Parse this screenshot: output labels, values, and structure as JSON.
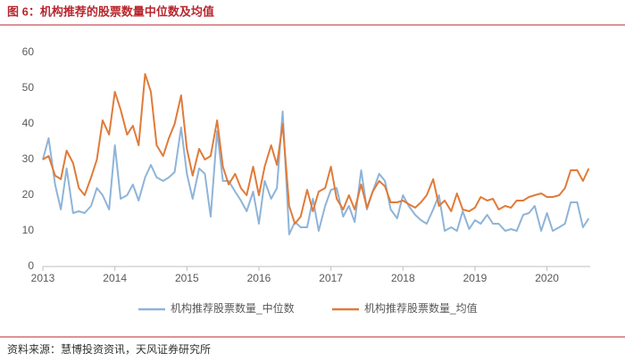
{
  "chart_data": {
    "type": "line",
    "title": "图 6：机构推荐的股票数量中位数及均值",
    "source": "资料来源：慧博投资资讯，天风证券研究所",
    "x": [
      2013,
      2013.08,
      2013.17,
      2013.25,
      2013.33,
      2013.42,
      2013.5,
      2013.58,
      2013.67,
      2013.75,
      2013.83,
      2013.92,
      2014,
      2014.08,
      2014.17,
      2014.25,
      2014.33,
      2014.42,
      2014.5,
      2014.58,
      2014.67,
      2014.75,
      2014.83,
      2014.92,
      2015,
      2015.08,
      2015.17,
      2015.25,
      2015.33,
      2015.42,
      2015.5,
      2015.58,
      2015.67,
      2015.75,
      2015.83,
      2015.92,
      2016,
      2016.08,
      2016.17,
      2016.25,
      2016.33,
      2016.42,
      2016.5,
      2016.58,
      2016.67,
      2016.75,
      2016.83,
      2016.92,
      2017,
      2017.08,
      2017.17,
      2017.25,
      2017.33,
      2017.42,
      2017.5,
      2017.58,
      2017.67,
      2017.75,
      2017.83,
      2017.92,
      2018,
      2018.08,
      2018.17,
      2018.25,
      2018.33,
      2018.42,
      2018.5,
      2018.58,
      2018.67,
      2018.75,
      2018.83,
      2018.92,
      2019,
      2019.08,
      2019.17,
      2019.25,
      2019.33,
      2019.42,
      2019.5,
      2019.58,
      2019.67,
      2019.75,
      2019.83,
      2019.92,
      2020,
      2020.08,
      2020.17,
      2020.25,
      2020.33,
      2020.42,
      2020.5,
      2020.58
    ],
    "series": [
      {
        "name": "机构推荐股票数量_中位数",
        "color": "#8fb4d8",
        "values": [
          30,
          36,
          23,
          16,
          27.5,
          15,
          15.5,
          15,
          17,
          22,
          20,
          16,
          34,
          19,
          20,
          23,
          18.5,
          25,
          28.5,
          25,
          24,
          25,
          26.5,
          39,
          26,
          19,
          27.5,
          26,
          14,
          38,
          24,
          24,
          21,
          18.5,
          15.5,
          21,
          12,
          24,
          19,
          22,
          43.5,
          9,
          12.5,
          11,
          11,
          19,
          10,
          17,
          21.5,
          22,
          14,
          17,
          12.5,
          27,
          16,
          21,
          26,
          24,
          16,
          13.5,
          20,
          17,
          14.5,
          13,
          12,
          16,
          20,
          10,
          11,
          10,
          15.5,
          10.5,
          13,
          12,
          14.5,
          12,
          12,
          10,
          10.5,
          10,
          14.5,
          15,
          17,
          10,
          15,
          10,
          11,
          12,
          18,
          18,
          11,
          13.5
        ]
      },
      {
        "name": "机构推荐股票数量_均值",
        "color": "#e07b39",
        "values": [
          30,
          31,
          25.5,
          24.5,
          32.5,
          29,
          22,
          20,
          25,
          30,
          41,
          37,
          49,
          44,
          37,
          39.5,
          34,
          54,
          49,
          34,
          31,
          36,
          40,
          48,
          33,
          25.5,
          33,
          30,
          31,
          41,
          28,
          23,
          26,
          22,
          20,
          28,
          20,
          28,
          34,
          28.5,
          40,
          17,
          12,
          14,
          21.5,
          15.5,
          21,
          22,
          28,
          19,
          16,
          20,
          16,
          23,
          16.5,
          21,
          24,
          22.5,
          18,
          18,
          18.5,
          17.5,
          16.5,
          18,
          20,
          24.5,
          17,
          18.5,
          15.5,
          20.5,
          16,
          15.5,
          16.5,
          19.5,
          18.5,
          19,
          16,
          17,
          16.5,
          18.5,
          18.5,
          19.5,
          20,
          20.5,
          19.5,
          19.5,
          20,
          22,
          27,
          27,
          24,
          27.5
        ]
      }
    ],
    "xlim": [
      2013,
      2020.6
    ],
    "xticks": [
      2013,
      2014,
      2015,
      2016,
      2017,
      2018,
      2019,
      2020
    ],
    "ylim": [
      0,
      60
    ],
    "yticks": [
      0,
      10,
      20,
      30,
      40,
      50,
      60
    ],
    "grid": false,
    "legend": "bottom"
  }
}
